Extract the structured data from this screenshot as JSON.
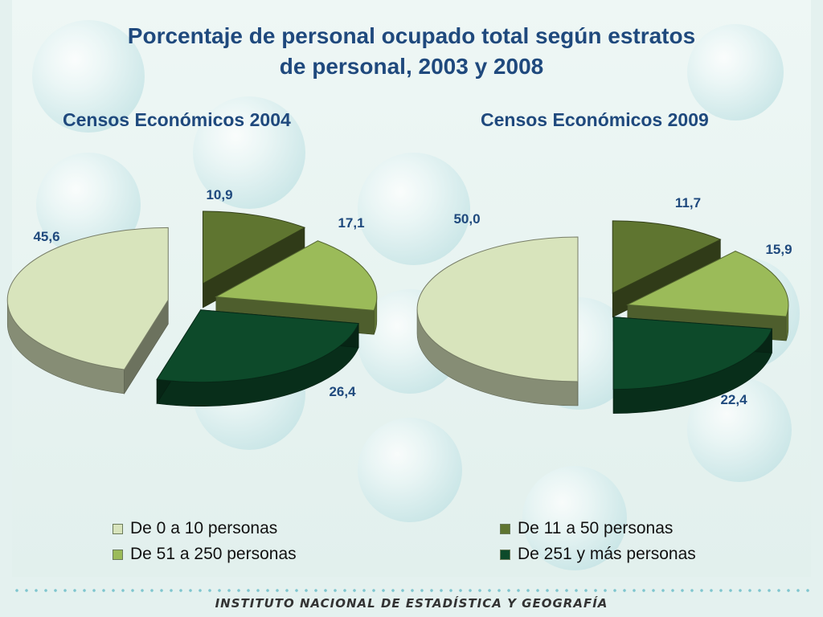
{
  "title": "Porcentaje de personal ocupado total según estratos de personal, 2003 y 2008",
  "footer": "INSTITUTO NACIONAL DE ESTADÍSTICA Y GEOGRAFÍA",
  "colors": {
    "title": "#1f497d",
    "s1": "#d8e4bc",
    "s2": "#5f7530",
    "s3": "#9bbb59",
    "s4": "#0d4a2a"
  },
  "chart_data": [
    {
      "type": "pie",
      "title": "Censos Económicos 2004",
      "categories": [
        "De 0 a 10 personas",
        "De 11 a 50 personas",
        "De 51 a 250 personas",
        "De 251 y más personas"
      ],
      "values": [
        45.6,
        10.9,
        17.1,
        26.4
      ],
      "labels": [
        "45,6",
        "10,9",
        "17,1",
        "26,4"
      ],
      "legend": "bottom"
    },
    {
      "type": "pie",
      "title": "Censos Económicos 2009",
      "categories": [
        "De 0 a 10 personas",
        "De 11 a 50 personas",
        "De 51 a 250 personas",
        "De 251 y más personas"
      ],
      "values": [
        50.0,
        11.7,
        15.9,
        22.4
      ],
      "labels": [
        "50,0",
        "11,7",
        "15,9",
        "22,4"
      ],
      "legend": "bottom"
    }
  ],
  "legend": [
    {
      "label": "De 0 a 10 personas"
    },
    {
      "label": "De 11 a 50 personas"
    },
    {
      "label": "De 51 a 250 personas"
    },
    {
      "label": "De 251 y más personas"
    }
  ]
}
